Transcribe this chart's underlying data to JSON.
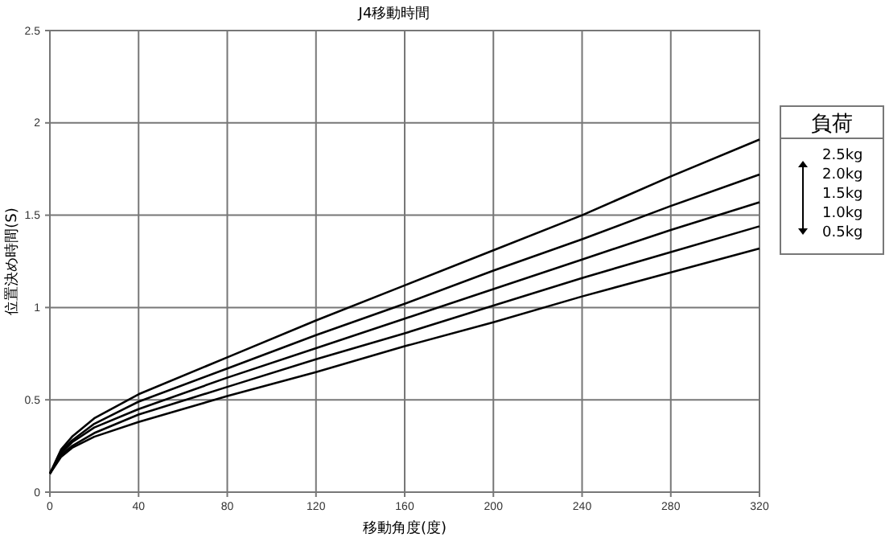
{
  "chart_data": {
    "type": "line",
    "title": "J4移動時間",
    "xlabel": "移動角度(度)",
    "ylabel": "位置決め時間(S)",
    "legend_title": "負荷",
    "x": [
      0,
      5,
      10,
      20,
      40,
      80,
      120,
      160,
      200,
      240,
      280,
      320
    ],
    "series": [
      {
        "name": "2.5kg",
        "color": "#000000",
        "values": [
          0.1,
          0.23,
          0.3,
          0.4,
          0.53,
          0.73,
          0.93,
          1.12,
          1.31,
          1.5,
          1.71,
          1.91
        ]
      },
      {
        "name": "2.0kg",
        "color": "#000000",
        "values": [
          0.1,
          0.22,
          0.28,
          0.37,
          0.49,
          0.67,
          0.85,
          1.02,
          1.2,
          1.37,
          1.55,
          1.72
        ]
      },
      {
        "name": "1.5kg",
        "color": "#000000",
        "values": [
          0.1,
          0.21,
          0.27,
          0.35,
          0.45,
          0.62,
          0.78,
          0.94,
          1.1,
          1.26,
          1.42,
          1.57
        ]
      },
      {
        "name": "1.0kg",
        "color": "#000000",
        "values": [
          0.1,
          0.2,
          0.25,
          0.32,
          0.42,
          0.57,
          0.72,
          0.86,
          1.01,
          1.16,
          1.3,
          1.44
        ]
      },
      {
        "name": "0.5kg",
        "color": "#000000",
        "values": [
          0.1,
          0.19,
          0.24,
          0.3,
          0.38,
          0.52,
          0.65,
          0.79,
          0.92,
          1.06,
          1.19,
          1.32
        ]
      }
    ],
    "xlim": [
      0,
      320
    ],
    "xticks": [
      0,
      40,
      80,
      120,
      160,
      200,
      240,
      280,
      320
    ],
    "ylim": [
      0,
      2.5
    ],
    "yticks": [
      0,
      0.5,
      1,
      1.5,
      2,
      2.5
    ],
    "grid": true,
    "legend": "right",
    "marker": "none",
    "line_style": "solid"
  }
}
